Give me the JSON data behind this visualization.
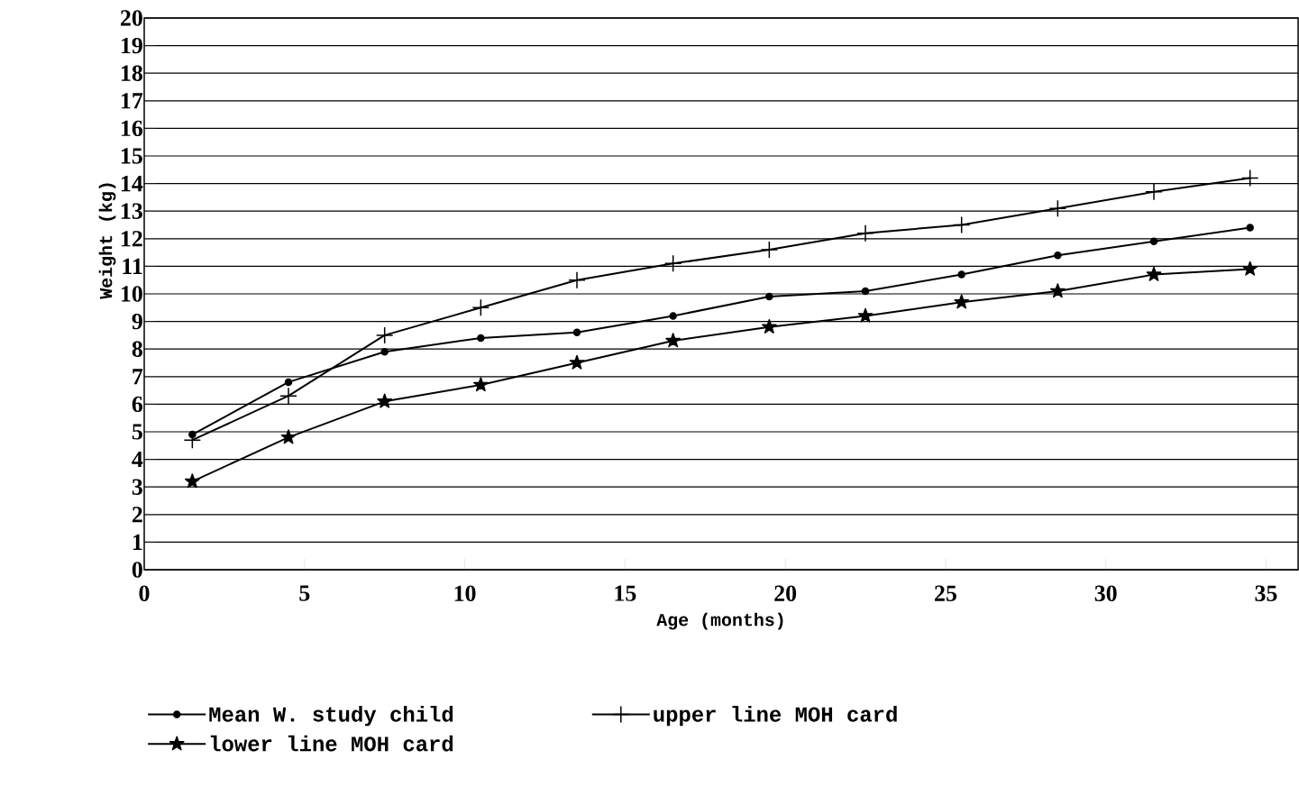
{
  "chart_data": {
    "type": "line",
    "xlabel": "Age (months)",
    "ylabel": "Weight (kg)",
    "x": [
      1.5,
      4.5,
      7.5,
      10.5,
      13.5,
      16.5,
      19.5,
      22.5,
      25.5,
      28.5,
      31.5,
      34.5
    ],
    "series": [
      {
        "name": "Mean W. study child",
        "color": "#000000",
        "marker": "circle",
        "values": [
          4.9,
          6.8,
          7.9,
          8.4,
          8.6,
          9.2,
          9.9,
          10.1,
          10.7,
          11.4,
          11.9,
          12.4
        ]
      },
      {
        "name": "upper line MOH card",
        "color": "#000000",
        "marker": "cross",
        "values": [
          4.7,
          6.3,
          8.5,
          9.5,
          10.5,
          11.1,
          11.6,
          12.2,
          12.5,
          13.1,
          13.7,
          14.2
        ]
      },
      {
        "name": "lower line MOH card",
        "color": "#000000",
        "marker": "star",
        "values": [
          3.2,
          4.8,
          6.1,
          6.7,
          7.5,
          8.3,
          8.8,
          9.2,
          9.7,
          10.1,
          10.7,
          10.9
        ]
      }
    ],
    "xlim": [
      0,
      36
    ],
    "ylim": [
      0,
      20
    ],
    "xticks": [
      0,
      5,
      10,
      15,
      20,
      25,
      30,
      35
    ],
    "yticks": [
      0,
      1,
      2,
      3,
      4,
      5,
      6,
      7,
      8,
      9,
      10,
      11,
      12,
      13,
      14,
      15,
      16,
      17,
      18,
      19,
      20
    ],
    "grid": "y",
    "legend": "bottom",
    "line_style": "solid"
  }
}
